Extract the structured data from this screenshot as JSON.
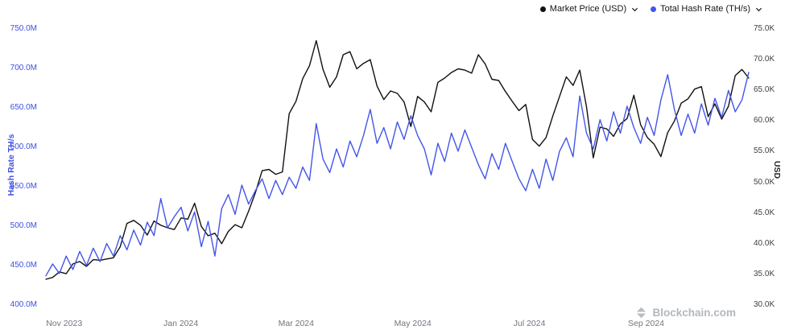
{
  "legend": {
    "market_price": {
      "label": "Market Price (USD)",
      "color": "#101010"
    },
    "hash_rate": {
      "label": "Total Hash Rate (TH/s)",
      "color": "#4355e8"
    }
  },
  "watermark": {
    "text": "Blockchain.com"
  },
  "axes": {
    "left": {
      "title": "Hash Rate TH/s",
      "color": "#3d4fe1",
      "ticks": [
        {
          "label": "750.0M",
          "value": 750
        },
        {
          "label": "700.0M",
          "value": 700
        },
        {
          "label": "650.0M",
          "value": 650
        },
        {
          "label": "600.0M",
          "value": 600
        },
        {
          "label": "550.0M",
          "value": 550
        },
        {
          "label": "500.0M",
          "value": 500
        },
        {
          "label": "450.0M",
          "value": 450
        },
        {
          "label": "400.0M",
          "value": 400
        }
      ]
    },
    "right": {
      "title": "USD",
      "color": "#3c4046",
      "ticks": [
        {
          "label": "75.0K",
          "value": 75
        },
        {
          "label": "70.0K",
          "value": 70
        },
        {
          "label": "65.0K",
          "value": 65
        },
        {
          "label": "60.0K",
          "value": 60
        },
        {
          "label": "55.0K",
          "value": 55
        },
        {
          "label": "50.0K",
          "value": 50
        },
        {
          "label": "45.0K",
          "value": 45
        },
        {
          "label": "40.0K",
          "value": 40
        },
        {
          "label": "35.0K",
          "value": 35
        },
        {
          "label": "30.0K",
          "value": 30
        }
      ]
    },
    "x": {
      "ticks": [
        {
          "label": "Nov 2023",
          "position": 0.026
        },
        {
          "label": "Jan 2024",
          "position": 0.192
        },
        {
          "label": "Mar 2024",
          "position": 0.356
        },
        {
          "label": "May 2024",
          "position": 0.522
        },
        {
          "label": "Jul 2024",
          "position": 0.688
        },
        {
          "label": "Sep 2024",
          "position": 0.854
        }
      ]
    }
  },
  "chart_data": {
    "type": "line",
    "title": "",
    "x_start": "2023-10-26",
    "x_end": "2024-10-24",
    "x_interval_days": 3.5,
    "x_tick_labels": [
      "Nov 2023",
      "Jan 2024",
      "Mar 2024",
      "May 2024",
      "Jul 2024",
      "Sep 2024"
    ],
    "grid": false,
    "legend_position": "top-right",
    "y_left": {
      "label": "Hash Rate TH/s",
      "unit": "M TH/s",
      "min": 400,
      "max": 750
    },
    "y_right": {
      "label": "USD",
      "unit": "K USD",
      "min": 30,
      "max": 75
    },
    "series": [
      {
        "id": "market-price",
        "name": "Market Price (USD)",
        "axis": "right",
        "unit": "K USD",
        "color": "#101010",
        "values": [
          34.2,
          34.5,
          35.4,
          35.1,
          36.7,
          37.1,
          36.3,
          37.4,
          37.3,
          37.5,
          37.7,
          39.5,
          43.3,
          43.8,
          43.0,
          41.4,
          43.7,
          43.0,
          42.6,
          42.3,
          44.2,
          44.0,
          46.6,
          42.8,
          41.3,
          41.7,
          40.0,
          42.0,
          43.1,
          42.6,
          45.3,
          48.3,
          51.9,
          52.1,
          51.3,
          51.7,
          61.2,
          63.2,
          66.9,
          69.0,
          73.1,
          68.4,
          65.5,
          67.2,
          70.8,
          71.3,
          68.5,
          69.4,
          70.0,
          65.7,
          63.5,
          64.9,
          64.5,
          63.1,
          59.1,
          64.0,
          63.1,
          61.5,
          66.3,
          67.0,
          67.9,
          68.5,
          68.3,
          67.8,
          70.8,
          69.3,
          66.8,
          66.6,
          64.8,
          63.2,
          61.7,
          62.7,
          57.0,
          55.9,
          57.3,
          60.8,
          64.0,
          67.2,
          65.8,
          68.3,
          62.3,
          54.0,
          59.0,
          58.7,
          57.5,
          59.5,
          60.4,
          64.2,
          59.4,
          57.3,
          56.2,
          54.2,
          58.1,
          60.0,
          62.9,
          63.6,
          65.2,
          65.6,
          60.7,
          62.8,
          60.3,
          62.4,
          67.4,
          68.4,
          67.0
        ]
      },
      {
        "id": "total-hash-rate",
        "name": "Total Hash Rate (TH/s)",
        "axis": "left",
        "unit": "M TH/s",
        "color": "#4355e8",
        "values": [
          437,
          452,
          440,
          462,
          445,
          468,
          450,
          472,
          455,
          478,
          462,
          488,
          470,
          495,
          476,
          505,
          488,
          535,
          498,
          512,
          524,
          494,
          518,
          474,
          506,
          462,
          522,
          540,
          515,
          552,
          528,
          545,
          560,
          535,
          558,
          540,
          562,
          548,
          575,
          558,
          630,
          585,
          568,
          598,
          575,
          608,
          588,
          615,
          648,
          605,
          625,
          598,
          632,
          610,
          640,
          615,
          598,
          565,
          605,
          582,
          618,
          595,
          622,
          600,
          578,
          560,
          592,
          572,
          605,
          582,
          560,
          545,
          572,
          548,
          585,
          558,
          595,
          612,
          588,
          665,
          618,
          598,
          635,
          608,
          645,
          618,
          652,
          625,
          605,
          638,
          615,
          660,
          692,
          648,
          615,
          642,
          618,
          655,
          628,
          662,
          638,
          672,
          645,
          660,
          695
        ]
      }
    ]
  }
}
